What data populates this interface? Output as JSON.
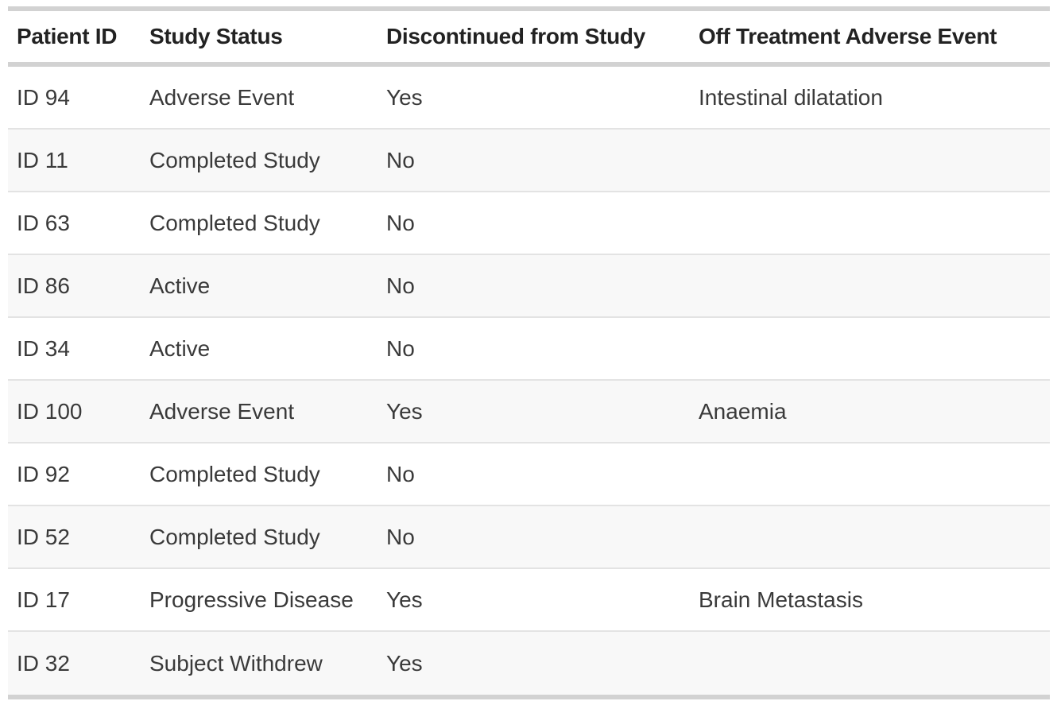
{
  "table": {
    "columns": [
      {
        "key": "patient_id",
        "label": "Patient ID"
      },
      {
        "key": "study_status",
        "label": "Study Status"
      },
      {
        "key": "discontinued",
        "label": "Discontinued from Study"
      },
      {
        "key": "adverse_event",
        "label": "Off Treatment Adverse Event"
      }
    ],
    "rows": [
      [
        "ID 94",
        "Adverse Event",
        "Yes",
        "Intestinal dilatation"
      ],
      [
        "ID 11",
        "Completed Study",
        "No",
        ""
      ],
      [
        "ID 63",
        "Completed Study",
        "No",
        ""
      ],
      [
        "ID 86",
        "Active",
        "No",
        ""
      ],
      [
        "ID 34",
        "Active",
        "No",
        ""
      ],
      [
        "ID 100",
        "Adverse Event",
        "Yes",
        "Anaemia"
      ],
      [
        "ID 92",
        "Completed Study",
        "No",
        ""
      ],
      [
        "ID 52",
        "Completed Study",
        "No",
        ""
      ],
      [
        "ID 17",
        "Progressive Disease",
        "Yes",
        "Brain Metastasis"
      ],
      [
        "ID 32",
        "Subject Withdrew",
        "Yes",
        ""
      ]
    ]
  },
  "colors": {
    "border-strong": "#d2d2d2",
    "border-light": "#e3e3e3",
    "stripe": "#f8f8f8",
    "header-text": "#222222",
    "body-text": "#3a3a3a",
    "background": "#ffffff"
  },
  "chart_data": {
    "type": "table",
    "title": "",
    "columns": [
      "Patient ID",
      "Study Status",
      "Discontinued from Study",
      "Off Treatment Adverse Event"
    ],
    "rows": [
      [
        "ID 94",
        "Adverse Event",
        "Yes",
        "Intestinal dilatation"
      ],
      [
        "ID 11",
        "Completed Study",
        "No",
        ""
      ],
      [
        "ID 63",
        "Completed Study",
        "No",
        ""
      ],
      [
        "ID 86",
        "Active",
        "No",
        ""
      ],
      [
        "ID 34",
        "Active",
        "No",
        ""
      ],
      [
        "ID 100",
        "Adverse Event",
        "Yes",
        "Anaemia"
      ],
      [
        "ID 92",
        "Completed Study",
        "No",
        ""
      ],
      [
        "ID 52",
        "Completed Study",
        "No",
        ""
      ],
      [
        "ID 17",
        "Progressive Disease",
        "Yes",
        "Brain Metastasis"
      ],
      [
        "ID 32",
        "Subject Withdrew",
        "Yes",
        ""
      ]
    ],
    "layout_hints": {
      "banded_rows": true,
      "stripe_on_even_rows": true,
      "header_bold": true,
      "grid_horizontal_only": true
    }
  }
}
